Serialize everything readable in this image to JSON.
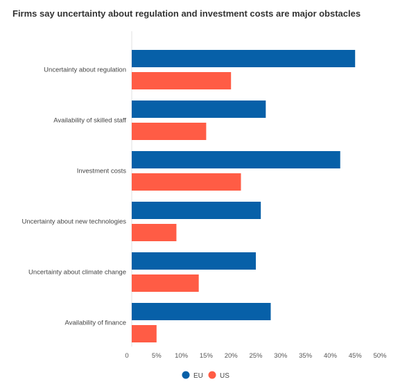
{
  "chart_data": {
    "type": "bar",
    "orientation": "horizontal",
    "title": "Firms say uncertainty about regulation and investment costs are major obstacles",
    "categories": [
      "Uncertainty about regulation",
      "Availability of skilled staff",
      "Investment costs",
      "Uncertainty about new technologies",
      "Uncertainty about climate change",
      "Availability of finance"
    ],
    "series": [
      {
        "name": "EU",
        "color": "#0760a8",
        "values": [
          45,
          27,
          42,
          26,
          25,
          28
        ]
      },
      {
        "name": "US",
        "color": "#ff5c45",
        "values": [
          20,
          15,
          22,
          9,
          13.5,
          5
        ]
      }
    ],
    "xlim": [
      0,
      50
    ],
    "xticks": [
      0,
      5,
      10,
      15,
      20,
      25,
      30,
      35,
      40,
      45,
      50
    ],
    "xtick_labels": [
      "0",
      "5%",
      "10%",
      "15%",
      "20%",
      "25%",
      "30%",
      "35%",
      "40%",
      "45%",
      "50%"
    ],
    "legend": "bottom-center",
    "grid": false
  }
}
